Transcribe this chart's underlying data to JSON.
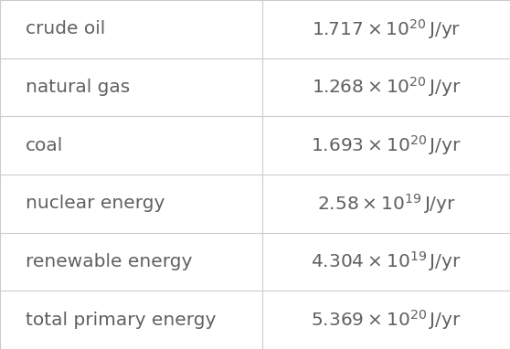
{
  "rows": [
    {
      "label": "crude oil",
      "coefficient": "1.717",
      "exponent": "20"
    },
    {
      "label": "natural gas",
      "coefficient": "1.268",
      "exponent": "20"
    },
    {
      "label": "coal",
      "coefficient": "1.693",
      "exponent": "20"
    },
    {
      "label": "nuclear energy",
      "coefficient": "2.58",
      "exponent": "19"
    },
    {
      "label": "renewable energy",
      "coefficient": "4.304",
      "exponent": "19"
    },
    {
      "label": "total primary energy",
      "coefficient": "5.369",
      "exponent": "20"
    }
  ],
  "col_split": 0.515,
  "bg_color": "#ffffff",
  "text_color": "#606060",
  "line_color": "#cccccc",
  "label_fontsize": 14.5,
  "value_fontsize": 14.5,
  "fig_width": 5.58,
  "fig_height": 3.82,
  "dpi": 100
}
